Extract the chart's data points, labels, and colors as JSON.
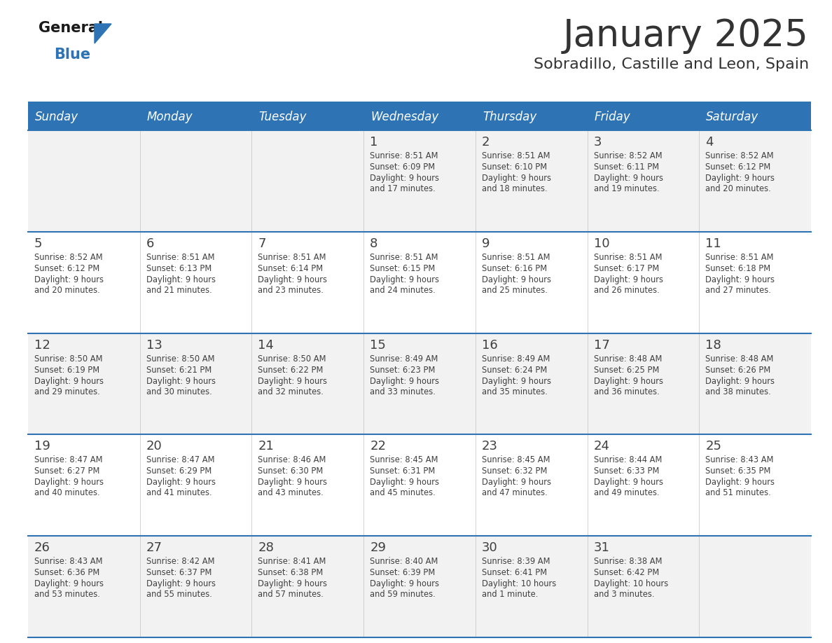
{
  "title": "January 2025",
  "subtitle": "Sobradillo, Castille and Leon, Spain",
  "days_of_week": [
    "Sunday",
    "Monday",
    "Tuesday",
    "Wednesday",
    "Thursday",
    "Friday",
    "Saturday"
  ],
  "header_bg": "#2E74B5",
  "header_text": "#FFFFFF",
  "cell_bg_light": "#F2F2F2",
  "cell_bg_white": "#FFFFFF",
  "divider_color": "#2E74B5",
  "text_color": "#404040",
  "title_color": "#333333",
  "calendar_data": [
    [
      {
        "day": null,
        "sunrise": null,
        "sunset": null,
        "daylight": null
      },
      {
        "day": null,
        "sunrise": null,
        "sunset": null,
        "daylight": null
      },
      {
        "day": null,
        "sunrise": null,
        "sunset": null,
        "daylight": null
      },
      {
        "day": 1,
        "sunrise": "8:51 AM",
        "sunset": "6:09 PM",
        "daylight": "9 hours\nand 17 minutes."
      },
      {
        "day": 2,
        "sunrise": "8:51 AM",
        "sunset": "6:10 PM",
        "daylight": "9 hours\nand 18 minutes."
      },
      {
        "day": 3,
        "sunrise": "8:52 AM",
        "sunset": "6:11 PM",
        "daylight": "9 hours\nand 19 minutes."
      },
      {
        "day": 4,
        "sunrise": "8:52 AM",
        "sunset": "6:12 PM",
        "daylight": "9 hours\nand 20 minutes."
      }
    ],
    [
      {
        "day": 5,
        "sunrise": "8:52 AM",
        "sunset": "6:12 PM",
        "daylight": "9 hours\nand 20 minutes."
      },
      {
        "day": 6,
        "sunrise": "8:51 AM",
        "sunset": "6:13 PM",
        "daylight": "9 hours\nand 21 minutes."
      },
      {
        "day": 7,
        "sunrise": "8:51 AM",
        "sunset": "6:14 PM",
        "daylight": "9 hours\nand 23 minutes."
      },
      {
        "day": 8,
        "sunrise": "8:51 AM",
        "sunset": "6:15 PM",
        "daylight": "9 hours\nand 24 minutes."
      },
      {
        "day": 9,
        "sunrise": "8:51 AM",
        "sunset": "6:16 PM",
        "daylight": "9 hours\nand 25 minutes."
      },
      {
        "day": 10,
        "sunrise": "8:51 AM",
        "sunset": "6:17 PM",
        "daylight": "9 hours\nand 26 minutes."
      },
      {
        "day": 11,
        "sunrise": "8:51 AM",
        "sunset": "6:18 PM",
        "daylight": "9 hours\nand 27 minutes."
      }
    ],
    [
      {
        "day": 12,
        "sunrise": "8:50 AM",
        "sunset": "6:19 PM",
        "daylight": "9 hours\nand 29 minutes."
      },
      {
        "day": 13,
        "sunrise": "8:50 AM",
        "sunset": "6:21 PM",
        "daylight": "9 hours\nand 30 minutes."
      },
      {
        "day": 14,
        "sunrise": "8:50 AM",
        "sunset": "6:22 PM",
        "daylight": "9 hours\nand 32 minutes."
      },
      {
        "day": 15,
        "sunrise": "8:49 AM",
        "sunset": "6:23 PM",
        "daylight": "9 hours\nand 33 minutes."
      },
      {
        "day": 16,
        "sunrise": "8:49 AM",
        "sunset": "6:24 PM",
        "daylight": "9 hours\nand 35 minutes."
      },
      {
        "day": 17,
        "sunrise": "8:48 AM",
        "sunset": "6:25 PM",
        "daylight": "9 hours\nand 36 minutes."
      },
      {
        "day": 18,
        "sunrise": "8:48 AM",
        "sunset": "6:26 PM",
        "daylight": "9 hours\nand 38 minutes."
      }
    ],
    [
      {
        "day": 19,
        "sunrise": "8:47 AM",
        "sunset": "6:27 PM",
        "daylight": "9 hours\nand 40 minutes."
      },
      {
        "day": 20,
        "sunrise": "8:47 AM",
        "sunset": "6:29 PM",
        "daylight": "9 hours\nand 41 minutes."
      },
      {
        "day": 21,
        "sunrise": "8:46 AM",
        "sunset": "6:30 PM",
        "daylight": "9 hours\nand 43 minutes."
      },
      {
        "day": 22,
        "sunrise": "8:45 AM",
        "sunset": "6:31 PM",
        "daylight": "9 hours\nand 45 minutes."
      },
      {
        "day": 23,
        "sunrise": "8:45 AM",
        "sunset": "6:32 PM",
        "daylight": "9 hours\nand 47 minutes."
      },
      {
        "day": 24,
        "sunrise": "8:44 AM",
        "sunset": "6:33 PM",
        "daylight": "9 hours\nand 49 minutes."
      },
      {
        "day": 25,
        "sunrise": "8:43 AM",
        "sunset": "6:35 PM",
        "daylight": "9 hours\nand 51 minutes."
      }
    ],
    [
      {
        "day": 26,
        "sunrise": "8:43 AM",
        "sunset": "6:36 PM",
        "daylight": "9 hours\nand 53 minutes."
      },
      {
        "day": 27,
        "sunrise": "8:42 AM",
        "sunset": "6:37 PM",
        "daylight": "9 hours\nand 55 minutes."
      },
      {
        "day": 28,
        "sunrise": "8:41 AM",
        "sunset": "6:38 PM",
        "daylight": "9 hours\nand 57 minutes."
      },
      {
        "day": 29,
        "sunrise": "8:40 AM",
        "sunset": "6:39 PM",
        "daylight": "9 hours\nand 59 minutes."
      },
      {
        "day": 30,
        "sunrise": "8:39 AM",
        "sunset": "6:41 PM",
        "daylight": "10 hours\nand 1 minute."
      },
      {
        "day": 31,
        "sunrise": "8:38 AM",
        "sunset": "6:42 PM",
        "daylight": "10 hours\nand 3 minutes."
      },
      {
        "day": null,
        "sunrise": null,
        "sunset": null,
        "daylight": null
      }
    ]
  ]
}
